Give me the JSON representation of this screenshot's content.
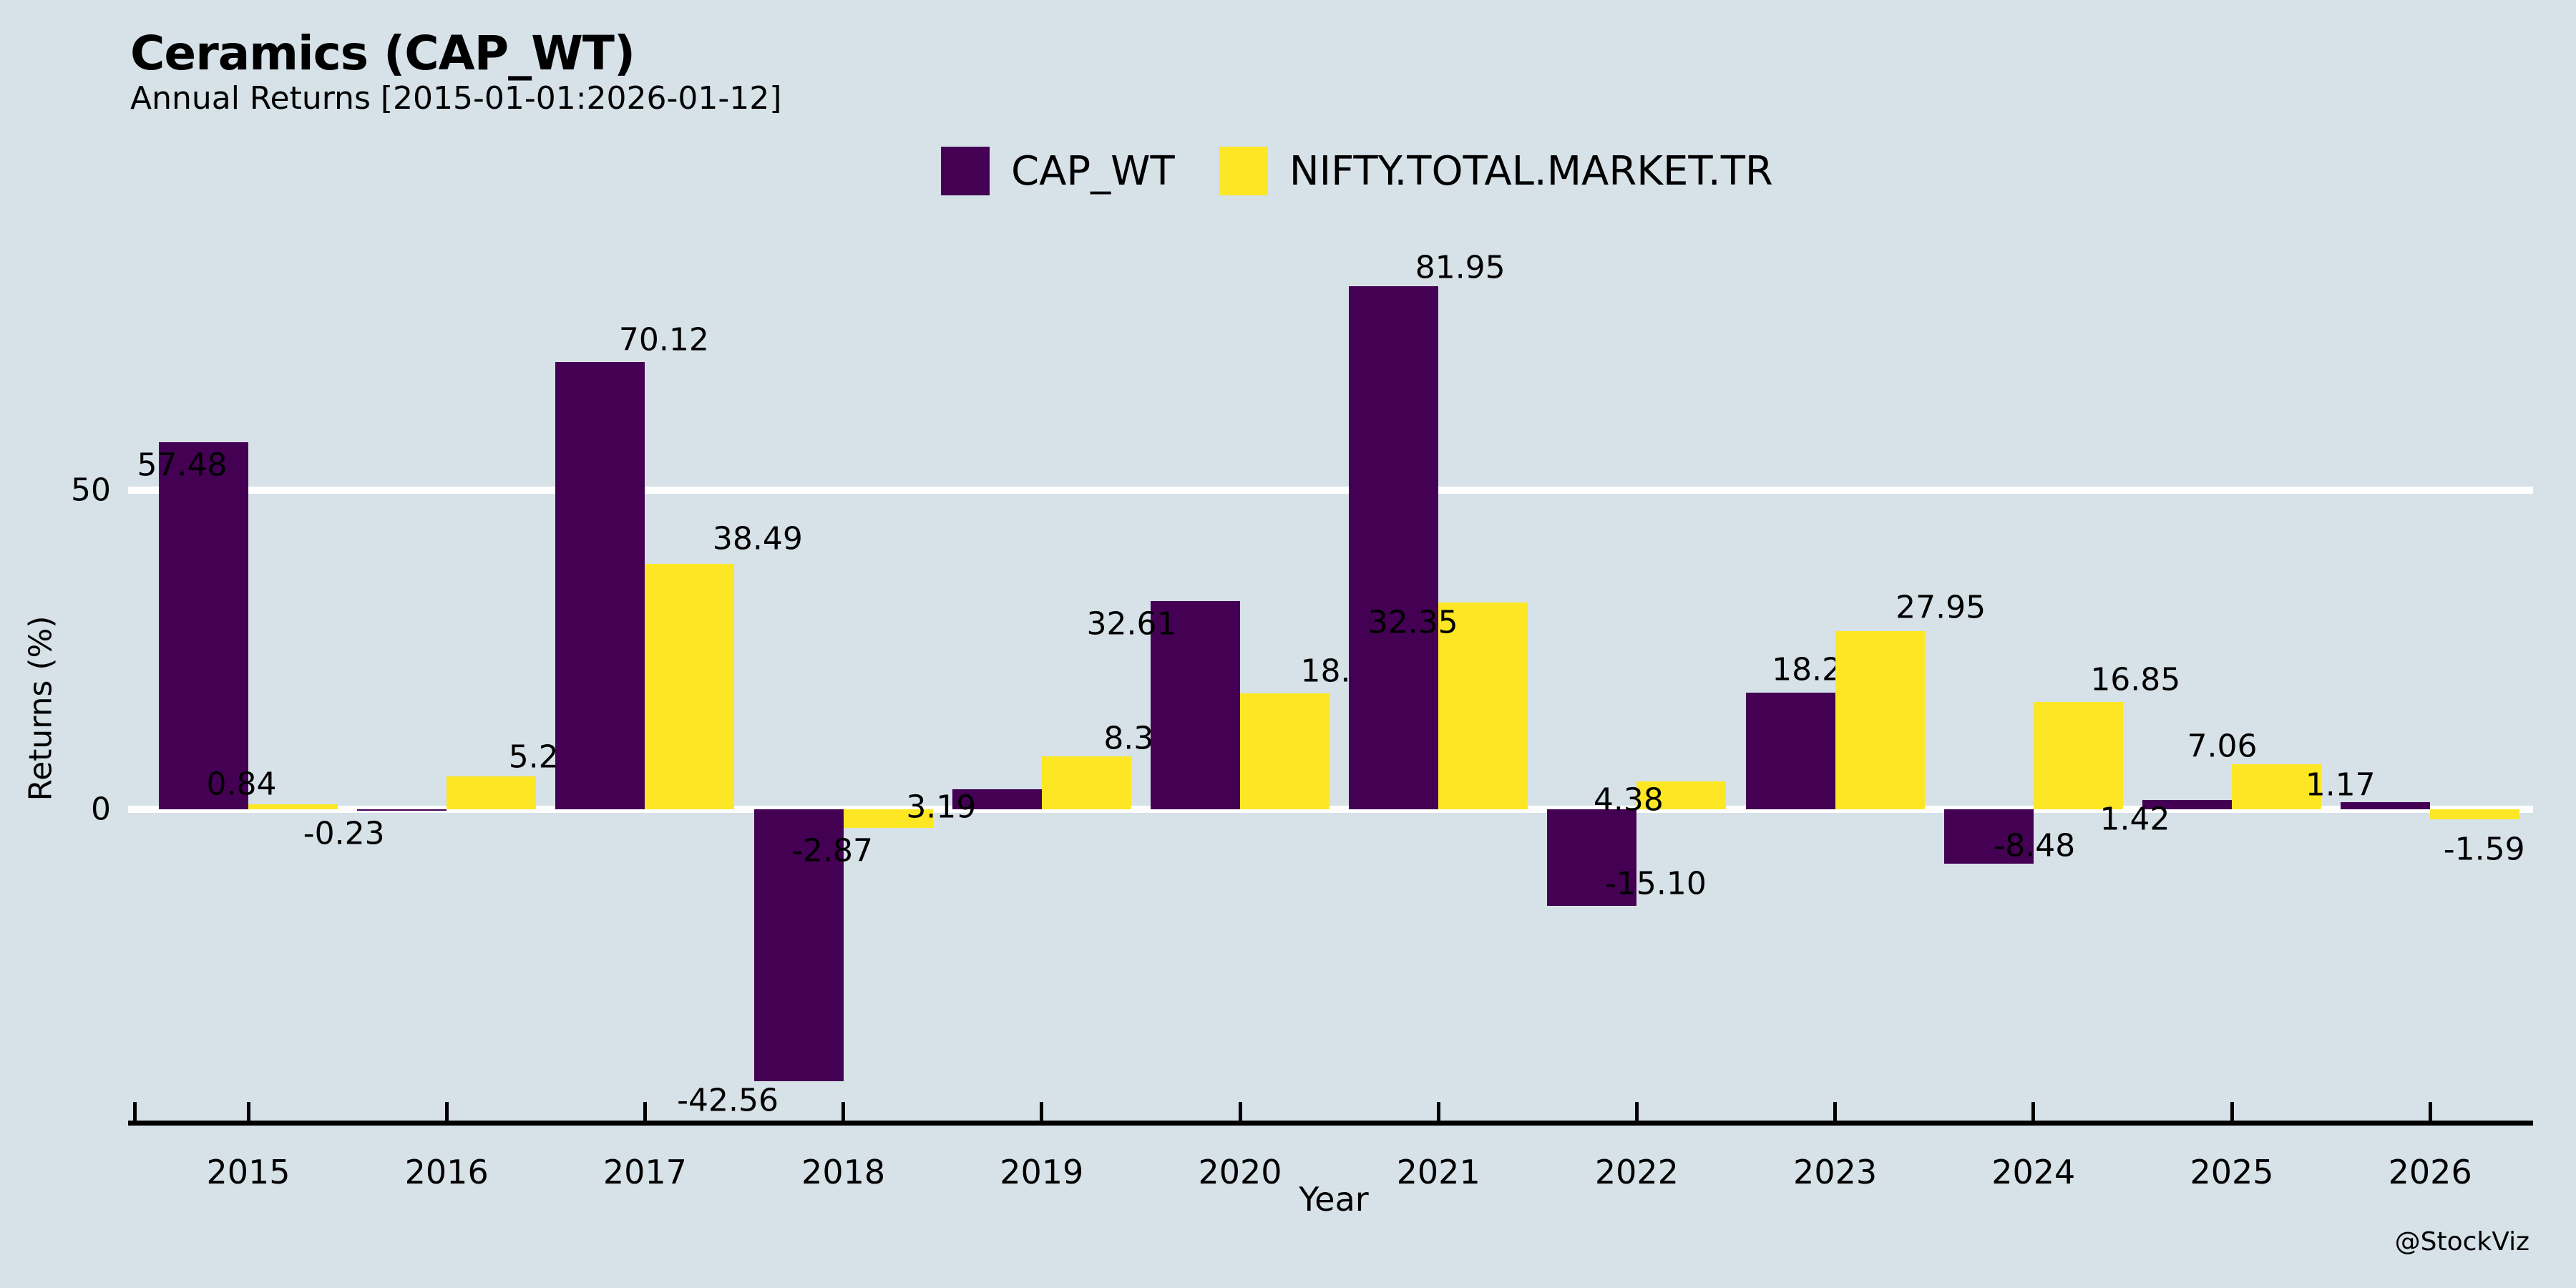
{
  "header": {
    "title": "Ceramics (CAP_WT)",
    "subtitle": "Annual Returns [2015-01-01:2026-01-12]"
  },
  "legend": [
    {
      "label": "CAP_WT",
      "color": "#440154"
    },
    {
      "label": "NIFTY.TOTAL.MARKET.TR",
      "color": "#fde725"
    }
  ],
  "axes": {
    "ylabel": "Returns (%)",
    "xlabel": "Year",
    "yticks": [
      {
        "value": 50,
        "label": "50"
      },
      {
        "value": 0,
        "label": "0"
      }
    ]
  },
  "watermark": "@StockViz",
  "colors": {
    "background": "#d6e1e8",
    "grid": "#ffffff",
    "axis": "#000000",
    "text": "#000000",
    "cap_wt": "#440154",
    "benchmark": "#fde725"
  },
  "chart_data": {
    "type": "bar",
    "title": "Ceramics (CAP_WT)",
    "subtitle": "Annual Returns [2015-01-01:2026-01-12]",
    "xlabel": "Year",
    "ylabel": "Returns (%)",
    "categories": [
      "2015",
      "2016",
      "2017",
      "2018",
      "2019",
      "2020",
      "2021",
      "2022",
      "2023",
      "2024",
      "2025",
      "2026"
    ],
    "series": [
      {
        "name": "CAP_WT",
        "color": "#440154",
        "values": [
          57.48,
          -0.23,
          70.12,
          -42.56,
          3.19,
          32.61,
          81.95,
          -15.1,
          18.22,
          -8.48,
          1.42,
          1.17
        ]
      },
      {
        "name": "NIFTY.TOTAL.MARKET.TR",
        "color": "#fde725",
        "values": [
          0.84,
          5.2,
          38.49,
          -2.87,
          8.31,
          18.18,
          32.35,
          4.38,
          27.95,
          16.85,
          7.06,
          -1.59
        ]
      }
    ],
    "ylim": [
      -50,
      95
    ],
    "gridlines_at": [
      0,
      50
    ],
    "grid_color": "white",
    "legend_position": "top-center",
    "value_labels": true
  }
}
